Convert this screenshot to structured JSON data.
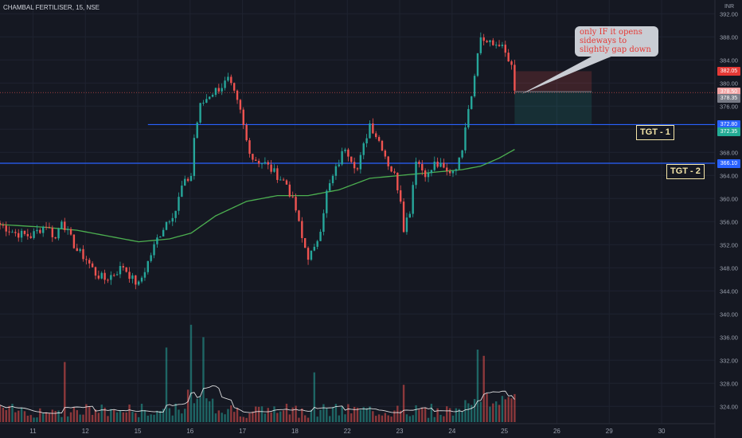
{
  "header": {
    "symbol_line": "CHAMBAL FERTILISER, 15, NSE",
    "currency": "INR"
  },
  "annotations": {
    "tgt1": "TGT - 1",
    "tgt2": "TGT - 2",
    "callout": "only IF it opens sideways to slightly gap down"
  },
  "price_tags": [
    {
      "label": "382.05",
      "color": "#e53935"
    },
    {
      "label": "378.50",
      "color": "#f2a3a3"
    },
    {
      "label": "378.35",
      "color": "#787b86"
    },
    {
      "label": "372.80",
      "color": "#2962ff"
    },
    {
      "label": "372.35",
      "color": "#22ab94"
    },
    {
      "label": "366.10",
      "color": "#2962ff"
    }
  ],
  "colors": {
    "up": "#26a69a",
    "down": "#ef5350",
    "ma": "#4caf50",
    "vol_ma": "#ffffff",
    "hline": "#2962ff"
  },
  "chart_data": {
    "type": "candlestick",
    "yticks": [
      324,
      328,
      332,
      336,
      340,
      344,
      348,
      352,
      356,
      360,
      364,
      368,
      372,
      376,
      380,
      384,
      388,
      392
    ],
    "ylim": [
      321,
      393
    ],
    "xticks": [
      {
        "label": "11",
        "pos": 0.7
      },
      {
        "label": "12",
        "pos": 17.7
      },
      {
        "label": "15",
        "pos": 34.7
      },
      {
        "label": "16",
        "pos": 51.7
      },
      {
        "label": "17",
        "pos": 68.7
      },
      {
        "label": "18",
        "pos": 85.7
      },
      {
        "label": "22",
        "pos": 102.7
      },
      {
        "label": "23",
        "pos": 119.7
      },
      {
        "label": "24",
        "pos": 136.7
      },
      {
        "label": "25",
        "pos": 153.7
      },
      {
        "label": "26",
        "pos": 170.7
      },
      {
        "label": "29",
        "pos": 187.7
      },
      {
        "label": "30",
        "pos": 204.7
      }
    ],
    "x_domain": [
      -10,
      222
    ],
    "key_points": [
      [
        -10,
        355.5
      ],
      [
        -5,
        354
      ],
      [
        0,
        353.5
      ],
      [
        5,
        355.5
      ],
      [
        8,
        353
      ],
      [
        10,
        356.5
      ],
      [
        12,
        354
      ],
      [
        15,
        351
      ],
      [
        18,
        349.5
      ],
      [
        21,
        347
      ],
      [
        24,
        346
      ],
      [
        27,
        347
      ],
      [
        30,
        348.3
      ],
      [
        33,
        346
      ],
      [
        35,
        345
      ],
      [
        38,
        349
      ],
      [
        41,
        353
      ],
      [
        44,
        356
      ],
      [
        47,
        358
      ],
      [
        49,
        362
      ],
      [
        52,
        364
      ],
      [
        53,
        370.5
      ],
      [
        55,
        376
      ],
      [
        58,
        378
      ],
      [
        62,
        379.5
      ],
      [
        64,
        380.5
      ],
      [
        66,
        378
      ],
      [
        68,
        375
      ],
      [
        70,
        370
      ],
      [
        72,
        367
      ],
      [
        76,
        366
      ],
      [
        80,
        364
      ],
      [
        83,
        362.5
      ],
      [
        86,
        358
      ],
      [
        88,
        353
      ],
      [
        90,
        350
      ],
      [
        92,
        351
      ],
      [
        94,
        355
      ],
      [
        96,
        361
      ],
      [
        99,
        365
      ],
      [
        102,
        369
      ],
      [
        104,
        367
      ],
      [
        106,
        365
      ],
      [
        108,
        369
      ],
      [
        110,
        373
      ],
      [
        112,
        371
      ],
      [
        114,
        369
      ],
      [
        116,
        366
      ],
      [
        118,
        364
      ],
      [
        120,
        360
      ],
      [
        121,
        355
      ],
      [
        123,
        358
      ],
      [
        125,
        367
      ],
      [
        127,
        365
      ],
      [
        129,
        364
      ],
      [
        131,
        366
      ],
      [
        133,
        365.5
      ],
      [
        135,
        364.5
      ],
      [
        137,
        365
      ],
      [
        139,
        366.5
      ],
      [
        140,
        369
      ],
      [
        141,
        373
      ],
      [
        142,
        376
      ],
      [
        143,
        378
      ],
      [
        144,
        382
      ],
      [
        145,
        385
      ],
      [
        146,
        388
      ],
      [
        148,
        387
      ],
      [
        150,
        386.5
      ],
      [
        152,
        387
      ],
      [
        154,
        385
      ],
      [
        156,
        382.5
      ],
      [
        157,
        378.4
      ]
    ],
    "ma_points": [
      [
        -10,
        355.5
      ],
      [
        5,
        355
      ],
      [
        15,
        354.5
      ],
      [
        25,
        353.5
      ],
      [
        35,
        352.5
      ],
      [
        45,
        353
      ],
      [
        52,
        354
      ],
      [
        60,
        357
      ],
      [
        70,
        359.5
      ],
      [
        80,
        360.5
      ],
      [
        90,
        360.5
      ],
      [
        100,
        361.5
      ],
      [
        110,
        363.5
      ],
      [
        120,
        364
      ],
      [
        130,
        364.5
      ],
      [
        140,
        365
      ],
      [
        146,
        365.6
      ],
      [
        152,
        367
      ],
      [
        157,
        368.5
      ]
    ],
    "volume": {
      "ylim": [
        0,
        100
      ],
      "big": [
        {
          "x": 11,
          "v": 58
        },
        {
          "x": 44,
          "v": 72
        },
        {
          "x": 52,
          "v": 94
        },
        {
          "x": 56,
          "v": 82
        },
        {
          "x": 92,
          "v": 48
        },
        {
          "x": 121,
          "v": 36
        },
        {
          "x": 145,
          "v": 70
        },
        {
          "x": 147,
          "v": 64
        },
        {
          "x": 150,
          "v": 18
        },
        {
          "x": 154,
          "v": 22
        }
      ]
    },
    "hlines": [
      {
        "price": 372.8,
        "from": 38
      },
      {
        "price": 366.1,
        "from": -10
      }
    ],
    "position_box": {
      "from": 157,
      "to": 182,
      "stop": 382.05,
      "entry": 378.5,
      "target": 372.8
    }
  }
}
